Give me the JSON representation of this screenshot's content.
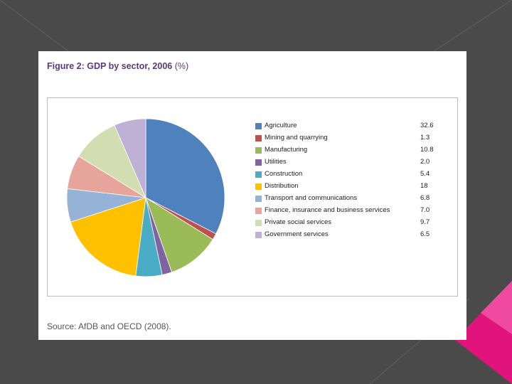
{
  "figure": {
    "title_main": "Figure 2: GDP by sector, 2006",
    "title_unit": "(%)",
    "source": "Source: AfDB and OECD (2008)."
  },
  "colors": {
    "background": "#4a4a4a",
    "accent": "#e0147a"
  },
  "chart_data": {
    "type": "pie",
    "title": "Figure 2: GDP by sector, 2006 (%)",
    "legend_position": "right",
    "slices": [
      {
        "label": "Agriculture",
        "value": 32.6,
        "display": "32.6",
        "color": "#4f81bd"
      },
      {
        "label": "Mining and quarrying",
        "value": 1.3,
        "display": "1.3",
        "color": "#c0504d"
      },
      {
        "label": "Manufacturing",
        "value": 10.8,
        "display": "10.8",
        "color": "#9bbb59"
      },
      {
        "label": "Utilities",
        "value": 2.0,
        "display": "2.0",
        "color": "#8064a2"
      },
      {
        "label": "Construction",
        "value": 5.4,
        "display": "5.4",
        "color": "#4bacc6"
      },
      {
        "label": "Distribution",
        "value": 18,
        "display": "18",
        "color": "#ffc000"
      },
      {
        "label": "Transport and communications",
        "value": 6.8,
        "display": "6.8",
        "color": "#95b3d7"
      },
      {
        "label": "Finance, insurance and business services",
        "value": 7.0,
        "display": "7.0",
        "color": "#e6a49c"
      },
      {
        "label": "Private social services",
        "value": 9.7,
        "display": "9.7",
        "color": "#d2deb1"
      },
      {
        "label": "Government services",
        "value": 6.5,
        "display": "6.5",
        "color": "#bfb1d5"
      }
    ]
  }
}
